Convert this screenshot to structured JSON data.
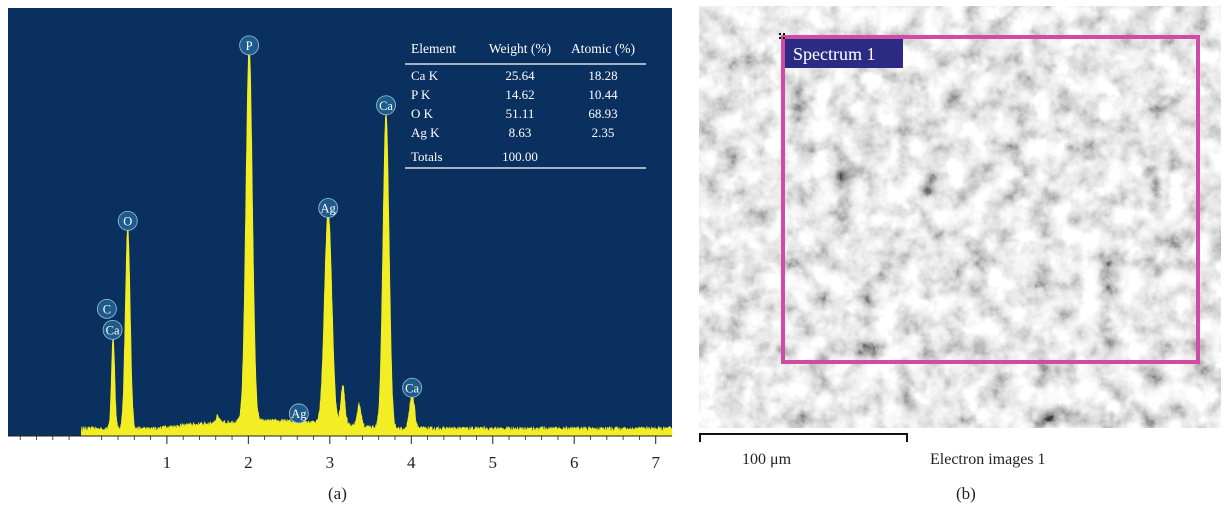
{
  "panel_a": {
    "caption": "(a)",
    "chart_data": {
      "type": "line",
      "title": "",
      "xlabel": "",
      "ylabel": "",
      "xlim": [
        -0.95,
        7.2
      ],
      "x_ticks": [
        1,
        2,
        3,
        4,
        5,
        6,
        7
      ],
      "background": "#0a3060",
      "fill_color": "#f3ee24",
      "peaks": [
        {
          "label": "C",
          "x": 0.27,
          "height": 0.0
        },
        {
          "label": "Ca",
          "x": 0.34,
          "height": 0.22
        },
        {
          "label": "O",
          "x": 0.52,
          "height": 0.47
        },
        {
          "label": "P",
          "x": 2.01,
          "height": 0.88
        },
        {
          "label": "Ag",
          "x": 2.62,
          "height": 0.02
        },
        {
          "label": "Ag",
          "x": 2.98,
          "height": 0.5
        },
        {
          "label": "Ca",
          "x": 3.69,
          "height": 0.74
        },
        {
          "label": "Ca",
          "x": 4.01,
          "height": 0.08
        }
      ],
      "table": {
        "headers": [
          "Element",
          "Weight (%)",
          "Atomic (%)"
        ],
        "rows": [
          [
            "Ca K",
            "25.64",
            "18.28"
          ],
          [
            "P K",
            "14.62",
            "10.44"
          ],
          [
            "O K",
            "51.11",
            "68.93"
          ],
          [
            "Ag K",
            "8.63",
            "2.35"
          ]
        ],
        "totals_label": "Totals",
        "totals_value": "100.00"
      }
    }
  },
  "panel_b": {
    "caption": "(b)",
    "spectrum_label": "Spectrum 1",
    "scale_label": "100 μm",
    "image_title": "Electron images 1",
    "box_color": "#d04ba6",
    "label_bg": "#2b2b84"
  }
}
